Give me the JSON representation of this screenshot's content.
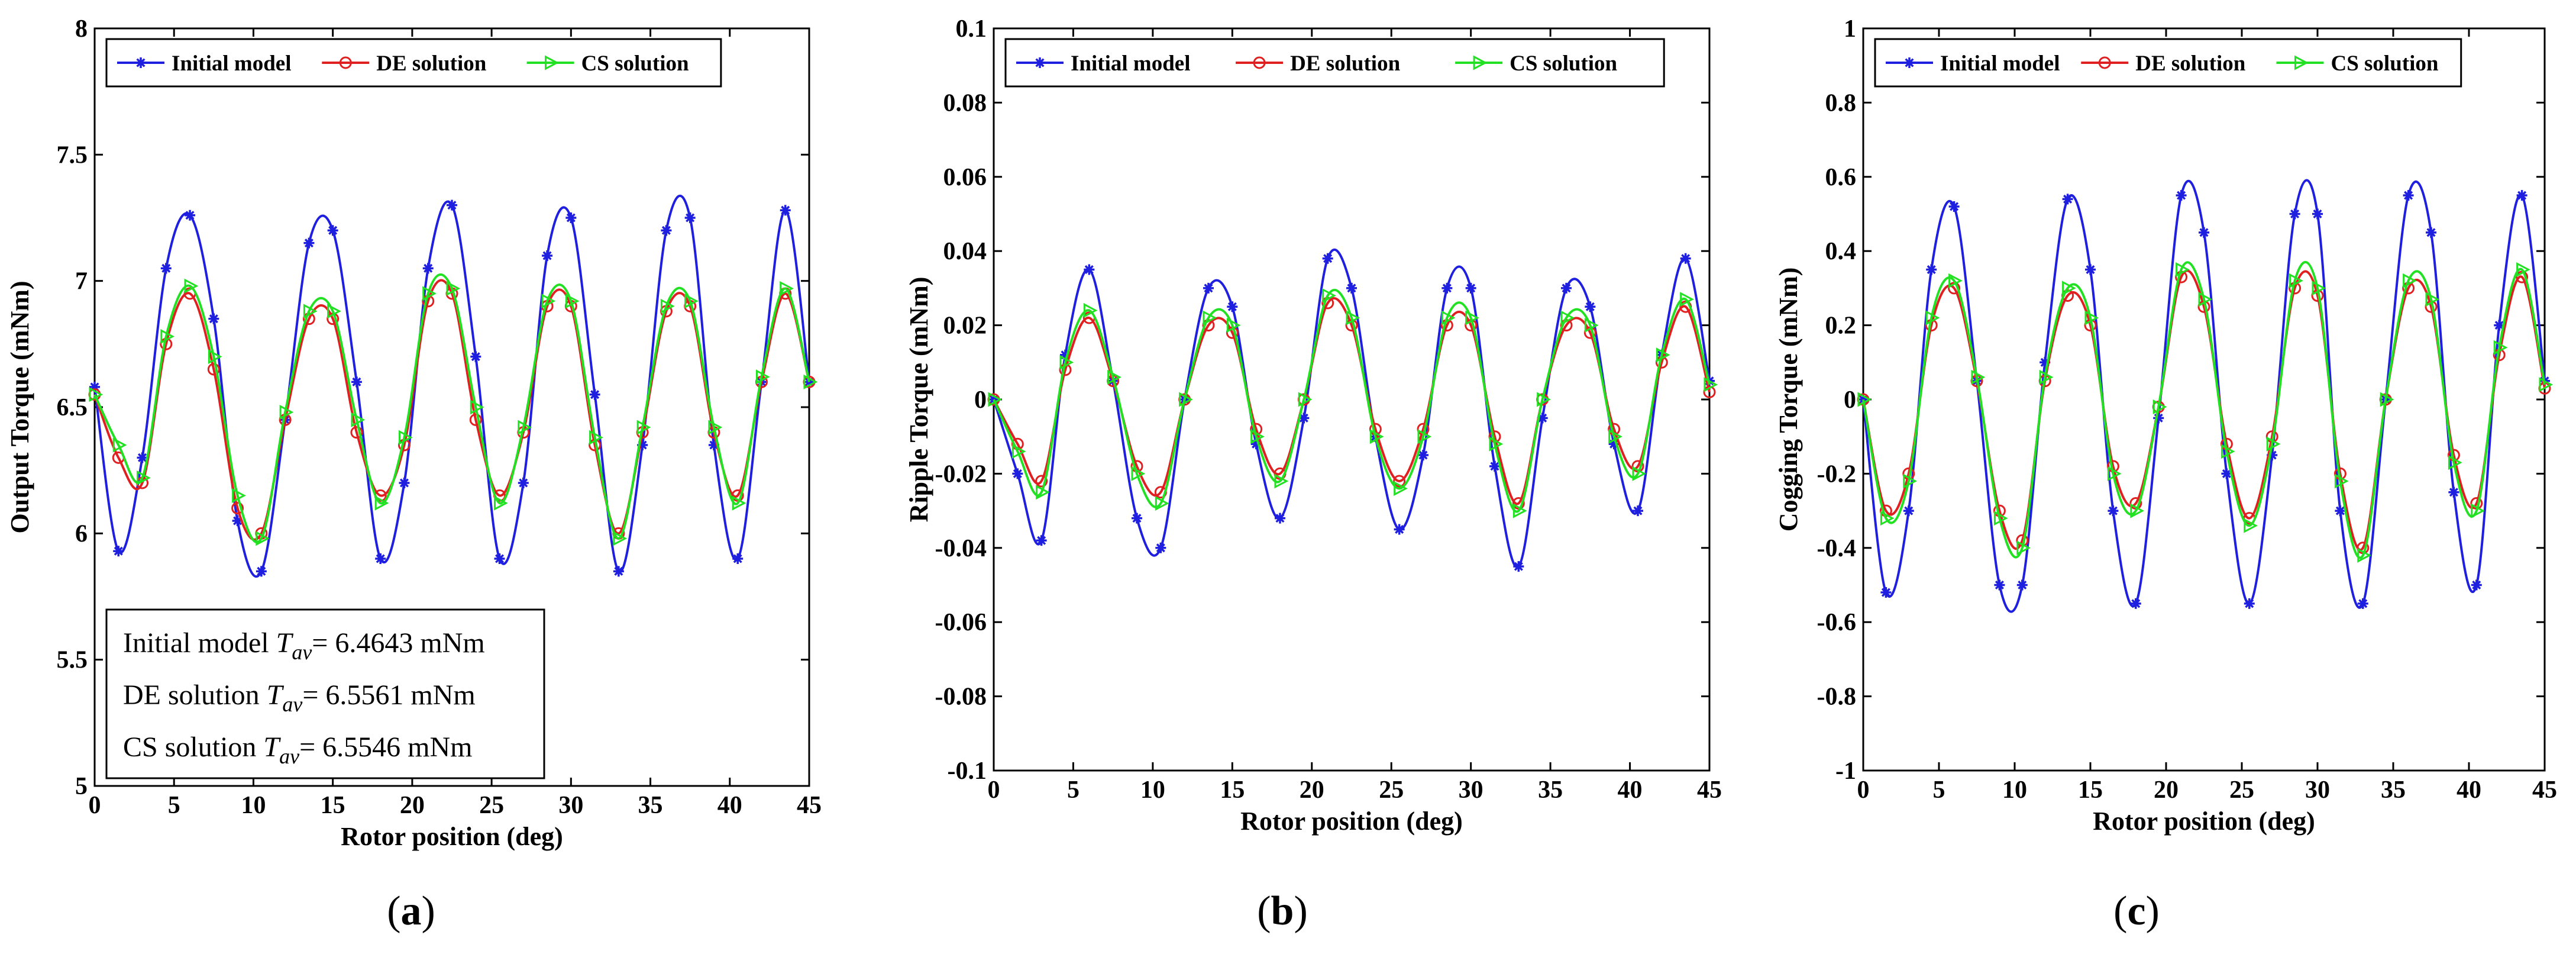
{
  "figure": {
    "panels": [
      {
        "caption_letter": "a",
        "note_lines": [
          {
            "pre": "Initial model ",
            "sym": "T",
            "sub": "av",
            "post": "= 6.4643 mNm"
          },
          {
            "pre": "DE solution ",
            "sym": "T",
            "sub": "av",
            "post": "= 6.5561 mNm"
          },
          {
            "pre": "CS solution ",
            "sym": "T",
            "sub": "av",
            "post": "= 6.5546 mNm"
          }
        ]
      },
      {
        "caption_letter": "b",
        "note_lines": []
      },
      {
        "caption_letter": "c",
        "note_lines": []
      }
    ],
    "colors": {
      "initial": "#1f1fe0",
      "de": "#e02020",
      "cs": "#22e022"
    }
  },
  "chart_data": [
    {
      "type": "line",
      "title": "",
      "xlabel": "Rotor position (deg)",
      "ylabel": "Output Torque (mNm)",
      "xlim": [
        0,
        45
      ],
      "ylim": [
        5,
        8
      ],
      "xticks": [
        0,
        5,
        10,
        15,
        20,
        25,
        30,
        35,
        40,
        45
      ],
      "xtick_labels": [
        "0",
        "5",
        "10",
        "15",
        "20",
        "25",
        "30",
        "35",
        "40",
        "45"
      ],
      "yticks": [
        5,
        5.5,
        6,
        6.5,
        7,
        7.5,
        8
      ],
      "ytick_labels": [
        "5",
        "5.5",
        "6",
        "6.5",
        "7",
        "7.5",
        "8"
      ],
      "legend": [
        "Initial model",
        "DE solution",
        "CS solution"
      ],
      "x": [
        0,
        1.5,
        3,
        4.5,
        6,
        7.5,
        9,
        10.5,
        12,
        13.5,
        15,
        16.5,
        18,
        19.5,
        21,
        22.5,
        24,
        25.5,
        27,
        28.5,
        30,
        31.5,
        33,
        34.5,
        36,
        37.5,
        39,
        40.5,
        42,
        43.5,
        45
      ],
      "series": [
        {
          "name": "Initial model",
          "values": [
            6.58,
            5.93,
            6.3,
            7.05,
            7.26,
            6.85,
            6.05,
            5.85,
            6.45,
            7.15,
            7.2,
            6.6,
            5.9,
            6.2,
            7.05,
            7.3,
            6.7,
            5.9,
            6.2,
            7.1,
            7.25,
            6.55,
            5.85,
            6.35,
            7.2,
            7.25,
            6.35,
            5.9,
            6.6,
            7.28,
            6.6
          ]
        },
        {
          "name": "DE solution",
          "values": [
            6.55,
            6.3,
            6.2,
            6.75,
            6.95,
            6.65,
            6.1,
            6.0,
            6.45,
            6.85,
            6.85,
            6.4,
            6.15,
            6.35,
            6.92,
            6.95,
            6.45,
            6.15,
            6.4,
            6.9,
            6.9,
            6.35,
            6.0,
            6.4,
            6.88,
            6.9,
            6.4,
            6.15,
            6.6,
            6.95,
            6.6
          ]
        },
        {
          "name": "CS solution",
          "values": [
            6.55,
            6.35,
            6.22,
            6.78,
            6.98,
            6.7,
            6.15,
            5.98,
            6.48,
            6.88,
            6.88,
            6.45,
            6.12,
            6.38,
            6.95,
            6.97,
            6.5,
            6.12,
            6.42,
            6.92,
            6.92,
            6.38,
            5.98,
            6.42,
            6.9,
            6.92,
            6.42,
            6.12,
            6.62,
            6.97,
            6.6
          ]
        }
      ]
    },
    {
      "type": "line",
      "title": "",
      "xlabel": "Rotor position (deg)",
      "ylabel": "Ripple Torque (mNm)",
      "xlim": [
        0,
        45
      ],
      "ylim": [
        -0.1,
        0.1
      ],
      "xticks": [
        0,
        5,
        10,
        15,
        20,
        25,
        30,
        35,
        40,
        45
      ],
      "xtick_labels": [
        "0",
        "5",
        "10",
        "15",
        "20",
        "25",
        "30",
        "35",
        "40",
        "45"
      ],
      "yticks": [
        -0.1,
        -0.08,
        -0.06,
        -0.04,
        -0.02,
        0,
        0.02,
        0.04,
        0.06,
        0.08,
        0.1
      ],
      "ytick_labels": [
        "-0.1",
        "-0.08",
        "-0.06",
        "-0.04",
        "-0.02",
        "0",
        "0.02",
        "0.04",
        "0.06",
        "0.08",
        "0.1"
      ],
      "legend": [
        "Initial model",
        "DE solution",
        "CS solution"
      ],
      "x": [
        0,
        1.5,
        3,
        4.5,
        6,
        7.5,
        9,
        10.5,
        12,
        13.5,
        15,
        16.5,
        18,
        19.5,
        21,
        22.5,
        24,
        25.5,
        27,
        28.5,
        30,
        31.5,
        33,
        34.5,
        36,
        37.5,
        39,
        40.5,
        42,
        43.5,
        45
      ],
      "series": [
        {
          "name": "Initial model",
          "values": [
            0.0,
            -0.02,
            -0.038,
            0.012,
            0.035,
            0.005,
            -0.032,
            -0.04,
            0.0,
            0.03,
            0.025,
            -0.012,
            -0.032,
            -0.005,
            0.038,
            0.03,
            -0.01,
            -0.035,
            -0.015,
            0.03,
            0.03,
            -0.018,
            -0.045,
            -0.005,
            0.03,
            0.025,
            -0.012,
            -0.03,
            0.012,
            0.038,
            0.005
          ]
        },
        {
          "name": "DE solution",
          "values": [
            0.0,
            -0.012,
            -0.022,
            0.008,
            0.022,
            0.005,
            -0.018,
            -0.025,
            0.0,
            0.02,
            0.018,
            -0.008,
            -0.02,
            0.0,
            0.026,
            0.02,
            -0.008,
            -0.022,
            -0.008,
            0.02,
            0.02,
            -0.01,
            -0.028,
            0.0,
            0.02,
            0.018,
            -0.008,
            -0.018,
            0.01,
            0.025,
            0.002
          ]
        },
        {
          "name": "CS solution",
          "values": [
            0.0,
            -0.014,
            -0.025,
            0.01,
            0.024,
            0.006,
            -0.02,
            -0.028,
            0.0,
            0.022,
            0.02,
            -0.01,
            -0.022,
            0.0,
            0.028,
            0.022,
            -0.01,
            -0.024,
            -0.01,
            0.022,
            0.022,
            -0.012,
            -0.03,
            0.0,
            0.022,
            0.02,
            -0.01,
            -0.02,
            0.012,
            0.027,
            0.004
          ]
        }
      ]
    },
    {
      "type": "line",
      "title": "",
      "xlabel": "Rotor position (deg)",
      "ylabel": "Cogging Torque (mNm)",
      "xlim": [
        0,
        45
      ],
      "ylim": [
        -1,
        1
      ],
      "xticks": [
        0,
        5,
        10,
        15,
        20,
        25,
        30,
        35,
        40,
        45
      ],
      "xtick_labels": [
        "0",
        "5",
        "10",
        "15",
        "20",
        "25",
        "30",
        "35",
        "40",
        "45"
      ],
      "yticks": [
        -1,
        -0.8,
        -0.6,
        -0.4,
        -0.2,
        0,
        0.2,
        0.4,
        0.6,
        0.8,
        1
      ],
      "ytick_labels": [
        "-1",
        "-0.8",
        "-0.6",
        "-0.4",
        "-0.2",
        "0",
        "0.2",
        "0.4",
        "0.6",
        "0.8",
        "1"
      ],
      "legend": [
        "Initial model",
        "DE solution",
        "CS solution"
      ],
      "x": [
        0,
        1.5,
        3,
        4.5,
        6,
        7.5,
        9,
        10.5,
        12,
        13.5,
        15,
        16.5,
        18,
        19.5,
        21,
        22.5,
        24,
        25.5,
        27,
        28.5,
        30,
        31.5,
        33,
        34.5,
        36,
        37.5,
        39,
        40.5,
        42,
        43.5,
        45
      ],
      "series": [
        {
          "name": "Initial model",
          "values": [
            0.0,
            -0.52,
            -0.3,
            0.35,
            0.52,
            0.05,
            -0.5,
            -0.5,
            0.1,
            0.54,
            0.35,
            -0.3,
            -0.55,
            -0.05,
            0.55,
            0.45,
            -0.2,
            -0.55,
            -0.15,
            0.5,
            0.5,
            -0.3,
            -0.55,
            0.0,
            0.55,
            0.45,
            -0.25,
            -0.5,
            0.2,
            0.55,
            0.05
          ]
        },
        {
          "name": "DE solution",
          "values": [
            0.0,
            -0.3,
            -0.2,
            0.2,
            0.3,
            0.05,
            -0.3,
            -0.38,
            0.05,
            0.28,
            0.2,
            -0.18,
            -0.28,
            -0.02,
            0.33,
            0.25,
            -0.12,
            -0.32,
            -0.1,
            0.3,
            0.28,
            -0.2,
            -0.4,
            0.0,
            0.3,
            0.25,
            -0.15,
            -0.28,
            0.12,
            0.33,
            0.03
          ]
        },
        {
          "name": "CS solution",
          "values": [
            0.0,
            -0.32,
            -0.22,
            0.22,
            0.32,
            0.06,
            -0.32,
            -0.4,
            0.06,
            0.3,
            0.22,
            -0.2,
            -0.3,
            -0.02,
            0.35,
            0.27,
            -0.14,
            -0.34,
            -0.12,
            0.32,
            0.3,
            -0.22,
            -0.42,
            0.0,
            0.32,
            0.27,
            -0.17,
            -0.3,
            0.14,
            0.35,
            0.04
          ]
        }
      ]
    }
  ]
}
